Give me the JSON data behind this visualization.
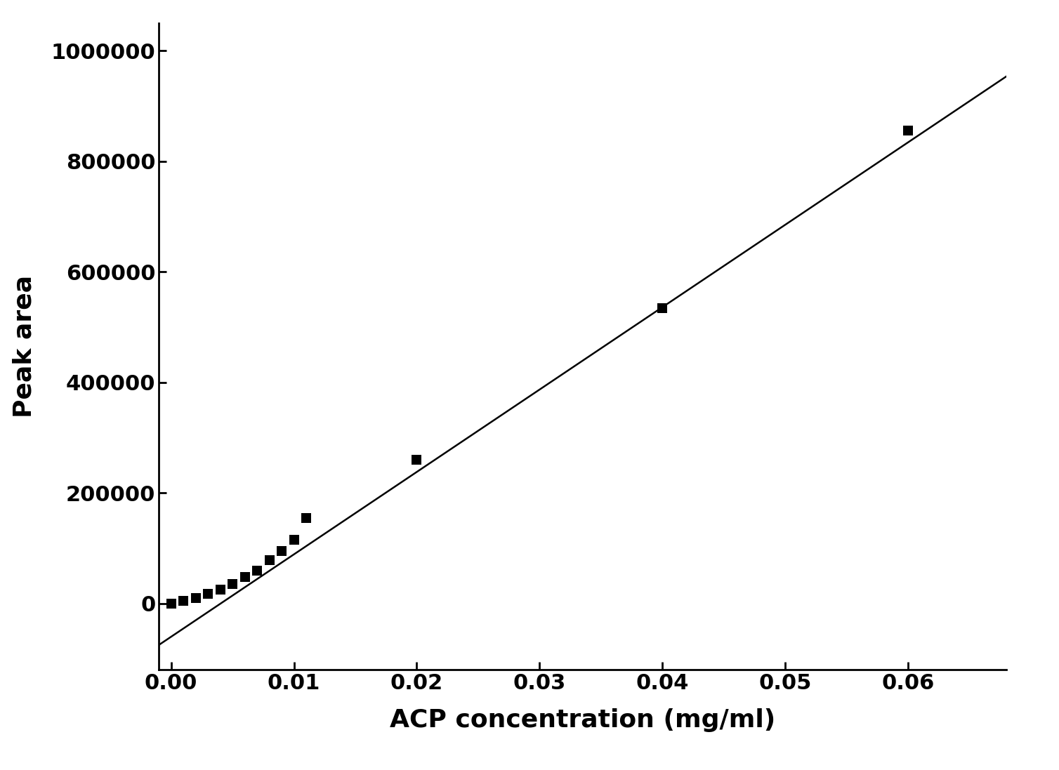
{
  "x_data": [
    0.0,
    0.001,
    0.002,
    0.003,
    0.004,
    0.005,
    0.006,
    0.007,
    0.008,
    0.009,
    0.01,
    0.011,
    0.02,
    0.04,
    0.06
  ],
  "y_data": [
    0,
    5000,
    10000,
    18000,
    25000,
    35000,
    48000,
    60000,
    78000,
    95000,
    115000,
    155000,
    260000,
    535000,
    855000
  ],
  "line_slope": 14900000,
  "line_intercept": -60000,
  "xlabel": "ACP concentration (mg/ml)",
  "ylabel": "Peak area",
  "xlim": [
    -0.001,
    0.068
  ],
  "ylim": [
    -120000,
    1050000
  ],
  "xticks": [
    0.0,
    0.01,
    0.02,
    0.03,
    0.04,
    0.05,
    0.06
  ],
  "yticks": [
    0,
    200000,
    400000,
    600000,
    800000,
    1000000
  ],
  "marker_color": "#000000",
  "line_color": "#000000",
  "marker_size": 100,
  "xlabel_fontsize": 26,
  "ylabel_fontsize": 26,
  "tick_fontsize": 22,
  "background_color": "#ffffff"
}
